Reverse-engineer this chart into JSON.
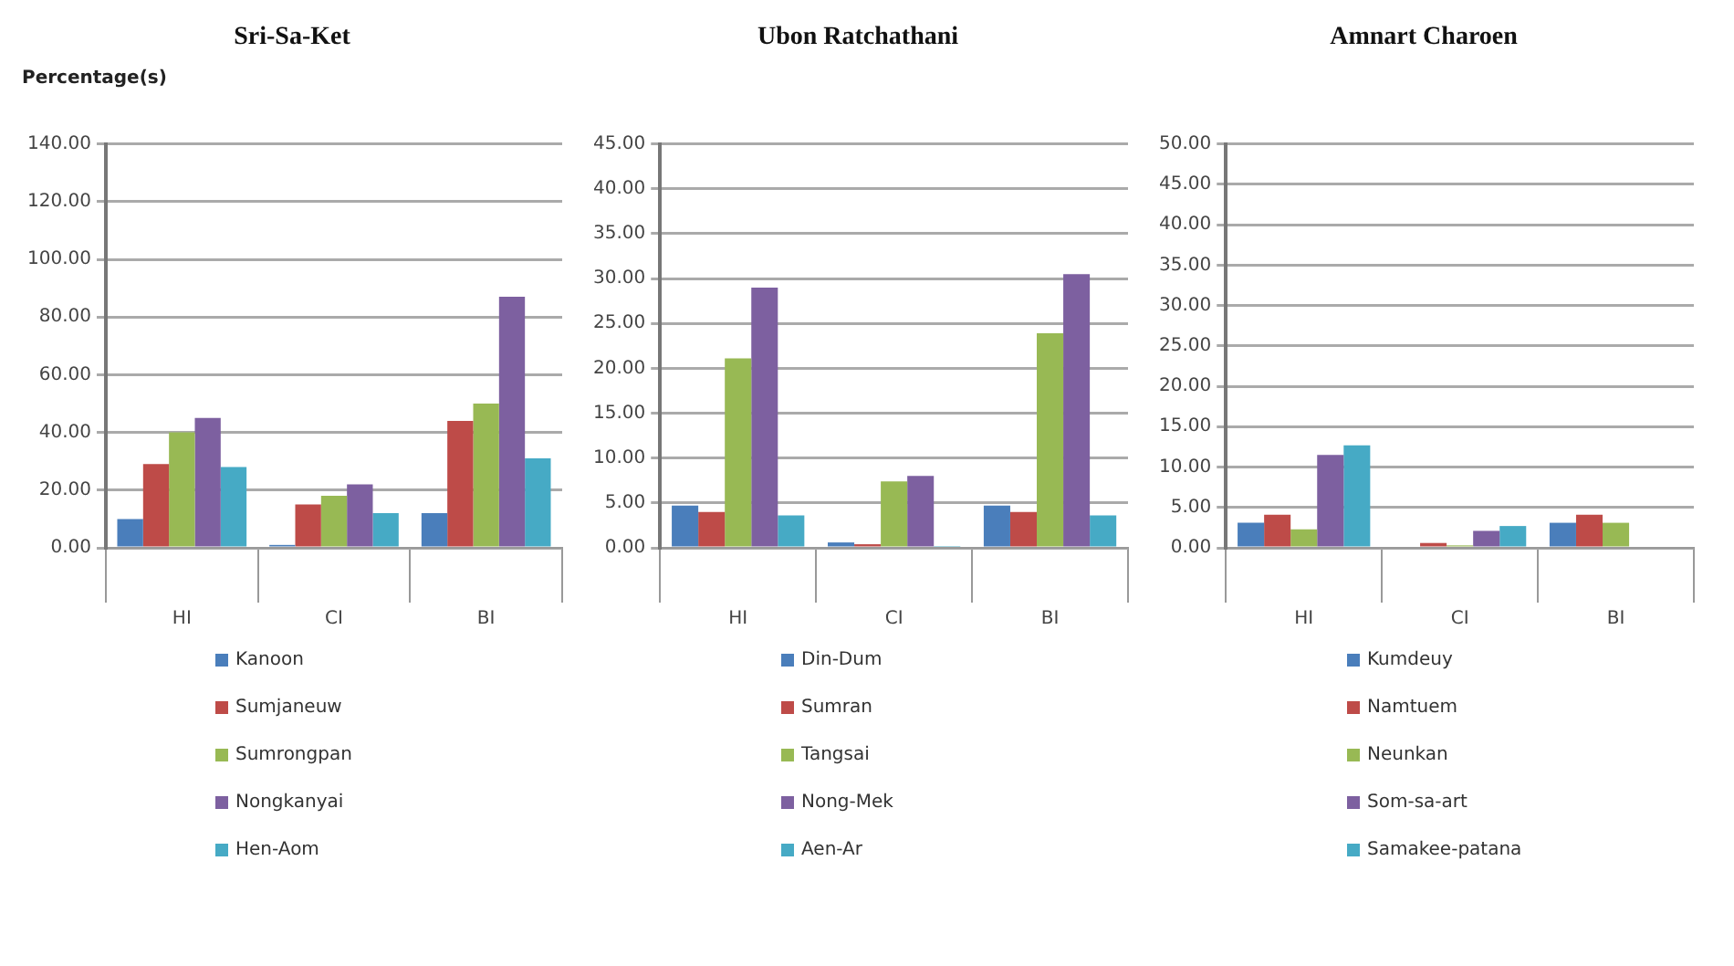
{
  "chart_data": [
    {
      "type": "bar",
      "title": "Sri-Sa-Ket",
      "ylabel": "Percentage(s)",
      "categories": [
        "HI",
        "CI",
        "BI"
      ],
      "series": [
        {
          "name": "Kanoon",
          "color": "#4a7ebb",
          "values": [
            10,
            1,
            12
          ]
        },
        {
          "name": "Sumjaneuw",
          "color": "#be4b48",
          "values": [
            29,
            15,
            44
          ]
        },
        {
          "name": "Sumrongpan",
          "color": "#98b954",
          "values": [
            40,
            18,
            50
          ]
        },
        {
          "name": "Nongkanyai",
          "color": "#7d60a0",
          "values": [
            45,
            22,
            87
          ]
        },
        {
          "name": "Hen-Aom",
          "color": "#46aac5",
          "values": [
            28,
            12,
            31
          ]
        }
      ],
      "ylim": [
        0,
        140
      ],
      "yticks": [
        {
          "value": 0,
          "label": "0.00"
        },
        {
          "value": 20,
          "label": "20.00"
        },
        {
          "value": 40,
          "label": "40.00"
        },
        {
          "value": 60,
          "label": "60.00"
        },
        {
          "value": 80,
          "label": "80.00"
        },
        {
          "value": 100,
          "label": "100.00"
        },
        {
          "value": 120,
          "label": "120.00"
        },
        {
          "value": 140,
          "label": "140.00"
        }
      ],
      "grid": "y",
      "legend": "bottom"
    },
    {
      "type": "bar",
      "title": "Ubon Ratchathani",
      "categories": [
        "HI",
        "CI",
        "BI"
      ],
      "series": [
        {
          "name": "Din-Dum",
          "color": "#4a7ebb",
          "values": [
            4.7,
            0.6,
            4.7
          ]
        },
        {
          "name": "Sumran",
          "color": "#be4b48",
          "values": [
            4.0,
            0.4,
            4.0
          ]
        },
        {
          "name": "Tangsai",
          "color": "#98b954",
          "values": [
            21.1,
            7.4,
            23.9
          ]
        },
        {
          "name": "Nong-Mek",
          "color": "#7d60a0",
          "values": [
            29.0,
            8.0,
            30.5
          ]
        },
        {
          "name": "Aen-Ar",
          "color": "#46aac5",
          "values": [
            3.6,
            0.2,
            3.6
          ]
        }
      ],
      "ylim": [
        0,
        45
      ],
      "yticks": [
        {
          "value": 0,
          "label": "0.00"
        },
        {
          "value": 5,
          "label": "5.00"
        },
        {
          "value": 10,
          "label": "10.00"
        },
        {
          "value": 15,
          "label": "15.00"
        },
        {
          "value": 20,
          "label": "20.00"
        },
        {
          "value": 25,
          "label": "25.00"
        },
        {
          "value": 30,
          "label": "30.00"
        },
        {
          "value": 35,
          "label": "35.00"
        },
        {
          "value": 40,
          "label": "40.00"
        },
        {
          "value": 45,
          "label": "45.00"
        }
      ],
      "grid": "y",
      "legend": "bottom"
    },
    {
      "type": "bar",
      "title": "Amnart Charoen",
      "categories": [
        "HI",
        "CI",
        "BI"
      ],
      "series": [
        {
          "name": "Kumdeuy",
          "color": "#4a7ebb",
          "values": [
            3.1,
            null,
            3.1
          ]
        },
        {
          "name": "Namtuem",
          "color": "#be4b48",
          "values": [
            4.1,
            0.6,
            4.1
          ]
        },
        {
          "name": "Neunkan",
          "color": "#98b954",
          "values": [
            2.3,
            0.3,
            3.1
          ]
        },
        {
          "name": "Som-sa-art",
          "color": "#7d60a0",
          "values": [
            11.5,
            2.1,
            null
          ]
        },
        {
          "name": "Samakee-patana",
          "color": "#46aac5",
          "values": [
            12.7,
            2.7,
            null
          ]
        }
      ],
      "ylim": [
        0,
        50
      ],
      "yticks": [
        {
          "value": 0,
          "label": "0.00"
        },
        {
          "value": 5,
          "label": "5.00"
        },
        {
          "value": 10,
          "label": "10.00"
        },
        {
          "value": 15,
          "label": "15.00"
        },
        {
          "value": 20,
          "label": "20.00"
        },
        {
          "value": 25,
          "label": "25.00"
        },
        {
          "value": 30,
          "label": "30.00"
        },
        {
          "value": 35,
          "label": "35.00"
        },
        {
          "value": 40,
          "label": "40.00"
        },
        {
          "value": 45,
          "label": "45.00"
        },
        {
          "value": 50,
          "label": "50.00"
        }
      ],
      "grid": "y",
      "legend": "bottom"
    }
  ]
}
